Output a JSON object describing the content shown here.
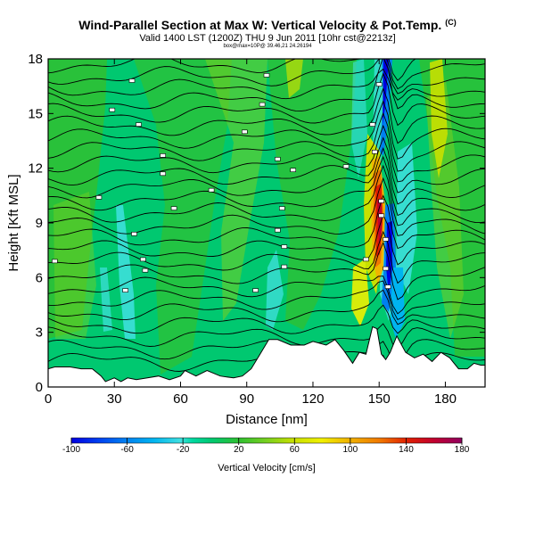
{
  "header": {
    "title": "Wind-Parallel Section at Max W: Vertical Velocity & Pot.Temp.",
    "title_mark": "(C)",
    "subtitle": "Valid 1400 LST (1200Z) THU 9 Jun 2011 [10hr cst@2213z]",
    "subtitle2": "box@max=10P@ 39.46,21 24.26194"
  },
  "chart_data": {
    "type": "heatmap",
    "title": "Wind-Parallel Section at Max W: Vertical Velocity & Pot.Temp.",
    "xlabel": "Distance [nm]",
    "ylabel": "Height [Kft MSL]",
    "xlim": [
      0,
      198
    ],
    "ylim": [
      0,
      18
    ],
    "xticks": [
      0,
      30,
      60,
      90,
      120,
      150,
      180
    ],
    "yticks": [
      0,
      3,
      6,
      9,
      12,
      15,
      18
    ],
    "colorbar": {
      "label": "Vertical Velocity [cm/s]",
      "min": -100,
      "max": 180,
      "ticks": [
        -100,
        -60,
        -20,
        20,
        60,
        100,
        140,
        180
      ],
      "colors": [
        "#0000e0",
        "#0060f0",
        "#00b4f0",
        "#40e0e0",
        "#00c870",
        "#30c030",
        "#78d020",
        "#c8e000",
        "#f0f000",
        "#f0b400",
        "#f07800",
        "#e02000",
        "#c00030",
        "#900060"
      ]
    },
    "terrain": {
      "x": [
        0,
        3,
        8,
        10,
        15,
        20,
        24,
        26,
        30,
        33,
        36,
        40,
        45,
        50,
        55,
        60,
        62,
        67,
        72,
        78,
        84,
        88,
        92,
        96,
        100,
        104,
        110,
        116,
        120,
        126,
        130,
        134,
        138,
        141,
        144,
        147,
        149,
        151,
        153,
        155,
        158,
        162,
        166,
        170,
        174,
        178,
        182,
        186,
        190,
        193,
        196,
        198
      ],
      "y": [
        1.0,
        1.1,
        1.1,
        1.1,
        1.0,
        1.0,
        0.6,
        0.3,
        0.5,
        0.3,
        0.5,
        0.4,
        0.5,
        0.6,
        0.4,
        0.6,
        0.9,
        0.6,
        0.9,
        0.6,
        0.5,
        0.6,
        1.0,
        1.8,
        2.6,
        2.6,
        2.3,
        2.3,
        2.5,
        2.3,
        2.6,
        2.0,
        1.3,
        1.9,
        1.8,
        3.3,
        3.2,
        1.8,
        1.5,
        1.9,
        2.8,
        1.9,
        1.6,
        1.8,
        1.4,
        1.9,
        1.6,
        1.0,
        1.0,
        1.3,
        1.2,
        1.2
      ]
    },
    "theta_labels": [
      {
        "x": 3,
        "y": 6.9
      },
      {
        "x": 23,
        "y": 10.4
      },
      {
        "x": 29,
        "y": 15.2
      },
      {
        "x": 35,
        "y": 5.3
      },
      {
        "x": 38,
        "y": 16.8
      },
      {
        "x": 39,
        "y": 8.4
      },
      {
        "x": 41,
        "y": 14.4
      },
      {
        "x": 43,
        "y": 7.0
      },
      {
        "x": 44,
        "y": 6.4
      },
      {
        "x": 52,
        "y": 12.7
      },
      {
        "x": 52,
        "y": 11.7
      },
      {
        "x": 57,
        "y": 9.8
      },
      {
        "x": 74,
        "y": 10.8
      },
      {
        "x": 89,
        "y": 14.0
      },
      {
        "x": 94,
        "y": 5.3
      },
      {
        "x": 97,
        "y": 15.5
      },
      {
        "x": 99,
        "y": 17.1
      },
      {
        "x": 104,
        "y": 12.5
      },
      {
        "x": 104,
        "y": 8.6
      },
      {
        "x": 106,
        "y": 9.8
      },
      {
        "x": 107,
        "y": 7.7
      },
      {
        "x": 107,
        "y": 6.6
      },
      {
        "x": 111,
        "y": 11.9
      },
      {
        "x": 135,
        "y": 12.1
      },
      {
        "x": 144,
        "y": 7.0
      },
      {
        "x": 147,
        "y": 14.4
      },
      {
        "x": 148,
        "y": 12.9
      },
      {
        "x": 150,
        "y": 16.6
      },
      {
        "x": 151,
        "y": 9.4
      },
      {
        "x": 151,
        "y": 10.2
      },
      {
        "x": 153,
        "y": 8.1
      },
      {
        "x": 153,
        "y": 6.5
      },
      {
        "x": 154,
        "y": 5.5
      }
    ]
  }
}
